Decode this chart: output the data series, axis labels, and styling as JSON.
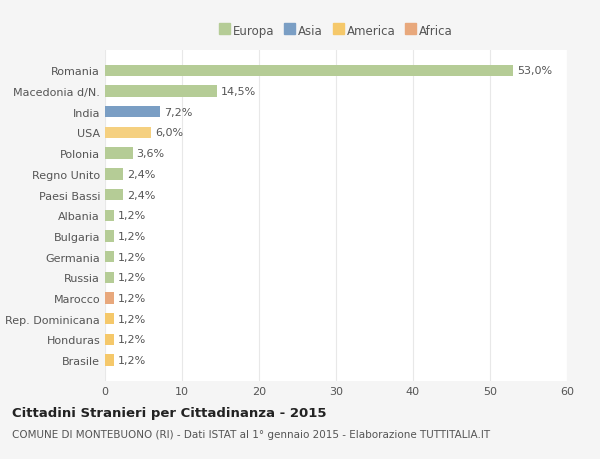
{
  "categories": [
    "Romania",
    "Macedonia d/N.",
    "India",
    "USA",
    "Polonia",
    "Regno Unito",
    "Paesi Bassi",
    "Albania",
    "Bulgaria",
    "Germania",
    "Russia",
    "Marocco",
    "Rep. Dominicana",
    "Honduras",
    "Brasile"
  ],
  "values": [
    53.0,
    14.5,
    7.2,
    6.0,
    3.6,
    2.4,
    2.4,
    1.2,
    1.2,
    1.2,
    1.2,
    1.2,
    1.2,
    1.2,
    1.2
  ],
  "labels": [
    "53,0%",
    "14,5%",
    "7,2%",
    "6,0%",
    "3,6%",
    "2,4%",
    "2,4%",
    "1,2%",
    "1,2%",
    "1,2%",
    "1,2%",
    "1,2%",
    "1,2%",
    "1,2%",
    "1,2%"
  ],
  "colors": [
    "#b5cc96",
    "#b5cc96",
    "#7a9ec4",
    "#f5d080",
    "#b5cc96",
    "#b5cc96",
    "#b5cc96",
    "#b5cc96",
    "#b5cc96",
    "#b5cc96",
    "#b5cc96",
    "#e8a87c",
    "#f5c86a",
    "#f5c86a",
    "#f5c86a"
  ],
  "legend": [
    {
      "label": "Europa",
      "color": "#b5cc96"
    },
    {
      "label": "Asia",
      "color": "#7a9ec4"
    },
    {
      "label": "America",
      "color": "#f5c86a"
    },
    {
      "label": "Africa",
      "color": "#e8a87c"
    }
  ],
  "xlim": [
    0,
    60
  ],
  "xticks": [
    0,
    10,
    20,
    30,
    40,
    50,
    60
  ],
  "title": "Cittadini Stranieri per Cittadinanza - 2015",
  "subtitle": "COMUNE DI MONTEBUONO (RI) - Dati ISTAT al 1° gennaio 2015 - Elaborazione TUTTITALIA.IT",
  "bg_color": "#ffffff",
  "fig_bg_color": "#f5f5f5",
  "grid_color": "#e8e8e8",
  "bar_height": 0.55,
  "label_fontsize": 8,
  "tick_fontsize": 8,
  "title_fontsize": 9.5,
  "subtitle_fontsize": 7.5,
  "text_color": "#555555",
  "title_color": "#222222"
}
